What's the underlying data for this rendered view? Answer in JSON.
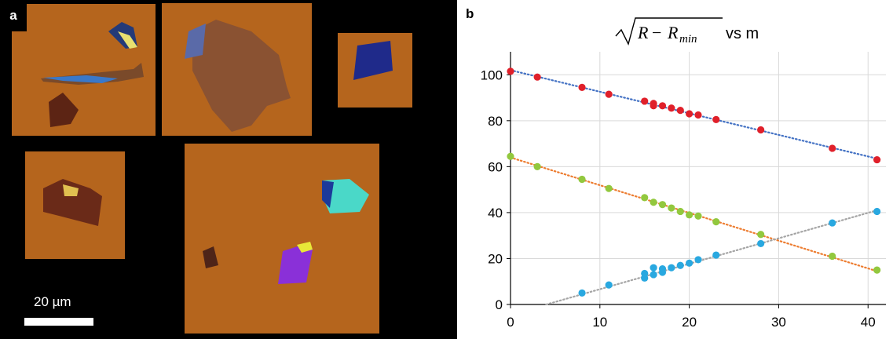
{
  "panel_a": {
    "label": "a",
    "scale_bar_label": "20 µm",
    "colors": {
      "background": "#000000",
      "substrate": "#b5651d"
    }
  },
  "chart_data": {
    "type": "scatter",
    "panel_label": "b",
    "title_math": "√(R − R_min)",
    "title_suffix": "vs m",
    "xlim": [
      0,
      42
    ],
    "ylim": [
      0,
      110
    ],
    "xticks": [
      0,
      10,
      20,
      30,
      40
    ],
    "yticks": [
      0,
      20,
      40,
      60,
      80,
      100
    ],
    "grid": true,
    "series": [
      {
        "color": "#e0202a",
        "trend_color": "#4472c4",
        "x": [
          0,
          3,
          8,
          11,
          15,
          16,
          16,
          17,
          18,
          19,
          20,
          21,
          23,
          28,
          36,
          41
        ],
        "y": [
          101.5,
          99,
          94.5,
          91.5,
          88.5,
          87.5,
          86.5,
          86.5,
          85.5,
          84.5,
          83,
          82.5,
          80.5,
          76,
          68,
          63
        ],
        "trend": [
          [
            0,
            102
          ],
          [
            41,
            63.5
          ]
        ]
      },
      {
        "color": "#92c83e",
        "trend_color": "#ed7d31",
        "x": [
          0,
          3,
          8,
          11,
          15,
          16,
          17,
          18,
          19,
          20,
          21,
          23,
          28,
          36,
          41
        ],
        "y": [
          64.5,
          60,
          54.5,
          50.5,
          46.5,
          44.5,
          43.5,
          42,
          40.5,
          39,
          38.5,
          36,
          30.5,
          21,
          15
        ],
        "trend": [
          [
            0,
            64
          ],
          [
            41,
            14.5
          ]
        ]
      },
      {
        "color": "#29a8e0",
        "trend_color": "#a5a5a5",
        "x": [
          8,
          11,
          15,
          15,
          16,
          16,
          17,
          17,
          18,
          19,
          20,
          21,
          23,
          28,
          36,
          41
        ],
        "y": [
          5,
          8.5,
          11.5,
          13.5,
          13,
          16,
          14,
          15.5,
          16,
          17,
          18,
          19.5,
          21.5,
          26.5,
          35.5,
          40.5
        ],
        "trend": [
          [
            4,
            0
          ],
          [
            41,
            41
          ]
        ]
      }
    ]
  }
}
